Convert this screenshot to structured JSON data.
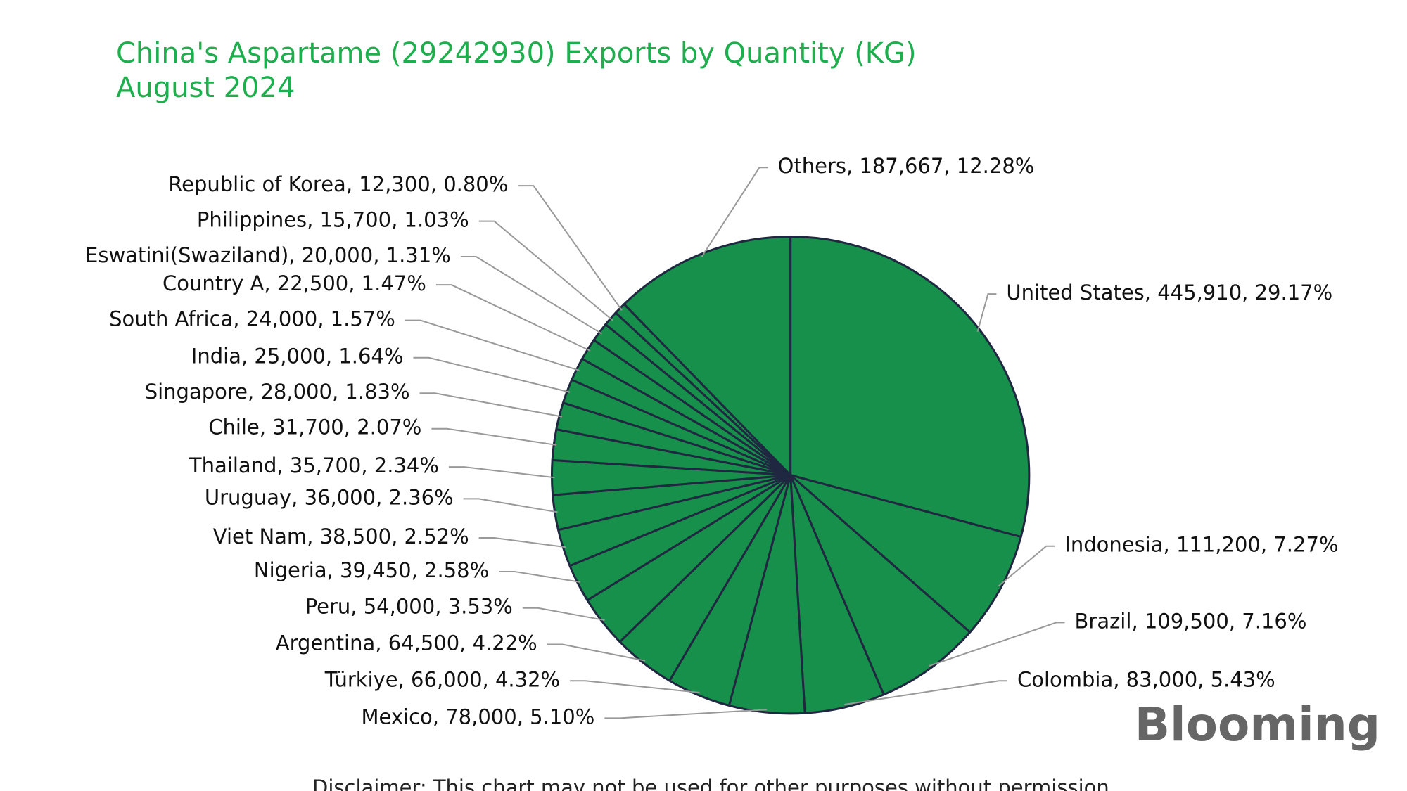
{
  "chart_data": {
    "type": "pie",
    "title": "China's Aspartame (29242930) Exports by Quantity (KG)",
    "subtitle": "August 2024",
    "categories": [
      "United States",
      "Indonesia",
      "Brazil",
      "Colombia",
      "Mexico",
      "Türkiye",
      "Argentina",
      "Peru",
      "Nigeria",
      "Viet Nam",
      "Uruguay",
      "Thailand",
      "Chile",
      "Singapore",
      "India",
      "South Africa",
      "Country A",
      "Eswatini(Swaziland)",
      "Philippines",
      "Republic of Korea",
      "Others"
    ],
    "values": [
      445910,
      111200,
      109500,
      83000,
      78000,
      66000,
      64500,
      54000,
      39450,
      38500,
      36000,
      35700,
      31700,
      28000,
      25000,
      24000,
      22500,
      20000,
      15700,
      12300,
      187667
    ],
    "value_labels": [
      "445,910",
      "111,200",
      "109,500",
      "83,000",
      "78,000",
      "66,000",
      "64,500",
      "54,000",
      "39,450",
      "38,500",
      "36,000",
      "35,700",
      "31,700",
      "28,000",
      "25,000",
      "24,000",
      "22,500",
      "20,000",
      "15,700",
      "12,300",
      "187,667"
    ],
    "percentages": [
      29.17,
      7.27,
      7.16,
      5.43,
      5.1,
      4.32,
      4.22,
      3.53,
      2.58,
      2.52,
      2.36,
      2.34,
      2.07,
      1.83,
      1.64,
      1.57,
      1.47,
      1.31,
      1.03,
      0.8,
      12.28
    ],
    "percent_labels": [
      "29.17%",
      "7.27%",
      "7.16%",
      "5.43%",
      "5.10%",
      "4.32%",
      "4.22%",
      "3.53%",
      "2.58%",
      "2.52%",
      "2.36%",
      "2.34%",
      "2.07%",
      "1.83%",
      "1.64%",
      "1.57%",
      "1.47%",
      "1.31%",
      "1.03%",
      "0.80%",
      "12.28%"
    ],
    "color": "#16904a",
    "logo": "Blooming",
    "disclaimer": "Disclaimer: This chart may not be used for other purposes without permission."
  }
}
